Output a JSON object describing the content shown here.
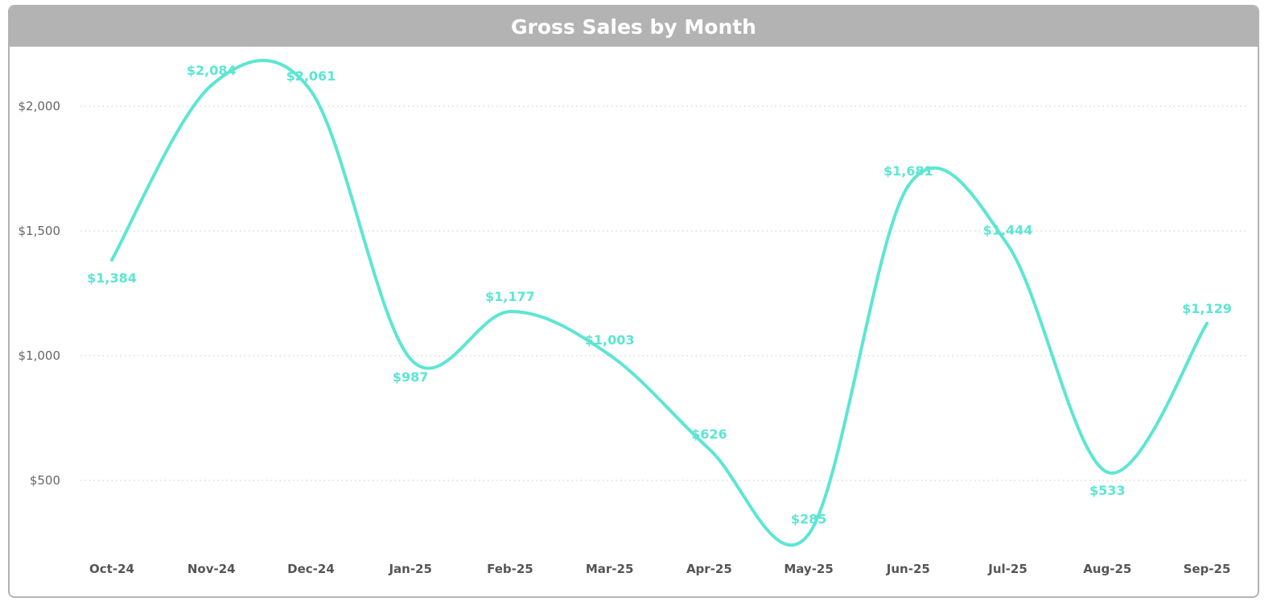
{
  "chart_data": {
    "type": "line",
    "title": "Gross Sales by Month",
    "xlabel": "",
    "ylabel": "",
    "categories": [
      "Oct-24",
      "Nov-24",
      "Dec-24",
      "Jan-25",
      "Feb-25",
      "Mar-25",
      "Apr-25",
      "May-25",
      "Jun-25",
      "Jul-25",
      "Aug-25",
      "Sep-25"
    ],
    "values": [
      1384,
      2084,
      2061,
      987,
      1177,
      1003,
      626,
      285,
      1681,
      1444,
      533,
      1129
    ],
    "data_labels": [
      "$1,384",
      "$2,084",
      "$2,061",
      "$987",
      "$1,177",
      "$1,003",
      "$626",
      "$285",
      "$1,681",
      "$1,444",
      "$533",
      "$1,129"
    ],
    "label_positions": [
      "below",
      "above",
      "above",
      "below",
      "above",
      "above",
      "above",
      "above",
      "above",
      "above",
      "below",
      "above"
    ],
    "yticks": [
      500,
      1000,
      1500,
      2000
    ],
    "ytick_labels": [
      "$500",
      "$1,000",
      "$1,500",
      "$2,000"
    ],
    "ylim": [
      190,
      2240
    ],
    "grid": true,
    "line_color": "#5ce6d3",
    "label_color": "#5ce6d3",
    "header_color": "#b3b3b3"
  }
}
